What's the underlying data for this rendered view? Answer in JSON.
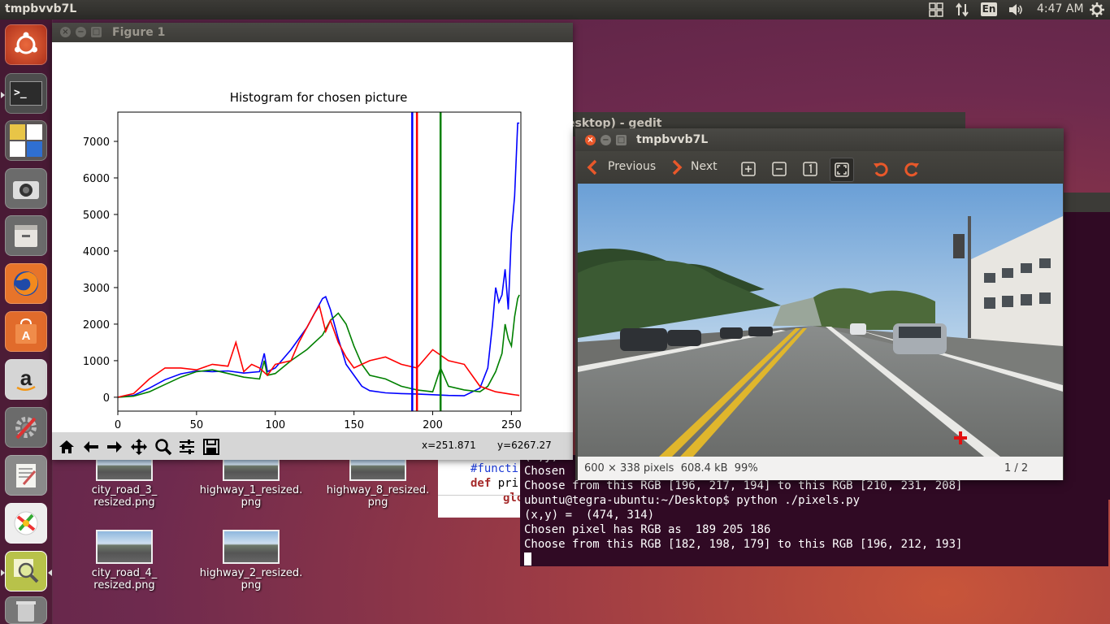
{
  "top_panel": {
    "title": "tmpbvvb7L",
    "keyboard": "En",
    "clock": "4:47 AM"
  },
  "launcher": {
    "items": [
      "ubuntu-dash",
      "terminal",
      "libreoffice-base",
      "camera",
      "file-manager",
      "firefox",
      "software-center",
      "amazon",
      "system-settings",
      "text-editor",
      "paint",
      "image-viewer",
      "trash"
    ]
  },
  "desktop_icons": [
    {
      "label_line1": "city_road_3_",
      "label_line2": "resized.png"
    },
    {
      "label_line1": "highway_1_resized.",
      "label_line2": "png"
    },
    {
      "label_line1": "highway_8_resized.",
      "label_line2": "png"
    },
    {
      "label_line1": "city_road_4_",
      "label_line2": "resized.png"
    },
    {
      "label_line1": "highway_2_resized.",
      "label_line2": "png"
    }
  ],
  "gedit_window": {
    "title": "esktop) - gedit",
    "code_line1": "#functi",
    "code_kw": "def",
    "code_rest": " pri",
    "code_line3": "glo"
  },
  "terminal": {
    "lines": [
      "(x,y)",
      "Chosen",
      "Choose from this RGB [196, 217, 194] to this RGB [210, 231, 208]",
      "ubuntu@tegra-ubuntu:~/Desktop$ python ./pixels.py",
      "(x,y) =  (474, 314)",
      "Chosen pixel has RGB as  189 205 186",
      "Choose from this RGB [182, 198, 179] to this RGB [196, 212, 193]"
    ]
  },
  "figure_window": {
    "title": "Figure 1",
    "toolbar": [
      "home-icon",
      "back-icon",
      "forward-icon",
      "pan-icon",
      "zoom-icon",
      "configure-icon",
      "save-icon"
    ],
    "coord_x": "x=251.871",
    "coord_y": "y=6267.27",
    "chart_data": {
      "type": "line",
      "title": "Histogram for chosen picture",
      "xlabel": "",
      "ylabel": "",
      "xlim": [
        0,
        256
      ],
      "ylim": [
        -380,
        7800
      ],
      "xticks": [
        "0",
        "50",
        "100",
        "150",
        "200",
        "250"
      ],
      "yticks": [
        "0",
        "1000",
        "2000",
        "3000",
        "4000",
        "5000",
        "6000",
        "7000"
      ],
      "series": [
        {
          "color": "#0000ff",
          "x": [
            0,
            10,
            20,
            30,
            40,
            50,
            60,
            70,
            80,
            90,
            93,
            95,
            100,
            110,
            120,
            125,
            130,
            132,
            135,
            140,
            145,
            150,
            155,
            160,
            170,
            180,
            190,
            200,
            210,
            220,
            230,
            235,
            238,
            240,
            242,
            244,
            246,
            248,
            250,
            252,
            254,
            255
          ],
          "y": [
            0,
            50,
            250,
            480,
            640,
            720,
            700,
            720,
            660,
            700,
            1200,
            700,
            800,
            1300,
            1900,
            2300,
            2700,
            2750,
            2400,
            1600,
            900,
            600,
            300,
            180,
            120,
            100,
            90,
            70,
            50,
            40,
            250,
            800,
            2000,
            3000,
            2600,
            2800,
            3500,
            2400,
            4500,
            5500,
            7500,
            7500
          ]
        },
        {
          "color": "#008000",
          "x": [
            0,
            10,
            20,
            30,
            40,
            50,
            60,
            70,
            80,
            90,
            93,
            95,
            100,
            110,
            120,
            130,
            135,
            140,
            145,
            150,
            155,
            160,
            170,
            180,
            190,
            200,
            205,
            210,
            220,
            230,
            235,
            240,
            244,
            246,
            248,
            250,
            252,
            254,
            255
          ],
          "y": [
            0,
            30,
            150,
            350,
            550,
            700,
            750,
            650,
            550,
            500,
            1000,
            600,
            650,
            1000,
            1300,
            1700,
            2100,
            2300,
            2000,
            1400,
            900,
            600,
            500,
            300,
            200,
            150,
            800,
            300,
            200,
            150,
            300,
            700,
            1200,
            2000,
            1600,
            1400,
            2200,
            2700,
            2800
          ]
        },
        {
          "color": "#ff0000",
          "x": [
            0,
            10,
            20,
            30,
            40,
            50,
            60,
            70,
            75,
            80,
            85,
            90,
            95,
            100,
            110,
            115,
            120,
            125,
            128,
            132,
            135,
            140,
            145,
            150,
            160,
            170,
            180,
            190,
            200,
            210,
            220,
            230,
            240,
            250,
            255
          ],
          "y": [
            0,
            100,
            500,
            800,
            800,
            750,
            900,
            850,
            1500,
            700,
            900,
            800,
            600,
            900,
            1000,
            1500,
            1900,
            2300,
            2500,
            1800,
            2100,
            1500,
            1100,
            800,
            1000,
            1100,
            900,
            800,
            1300,
            1000,
            900,
            300,
            150,
            80,
            50
          ]
        }
      ],
      "vlines": [
        {
          "x": 187,
          "color": "#0000ff"
        },
        {
          "x": 190,
          "color": "#ff0000"
        },
        {
          "x": 205,
          "color": "#008000"
        }
      ]
    }
  },
  "image_viewer": {
    "title": "tmpbvvb7L",
    "prev_label": "Previous",
    "next_label": "Next",
    "status_size": "600 × 338 pixels  608.4 kB  99%",
    "status_page": "1 / 2"
  }
}
